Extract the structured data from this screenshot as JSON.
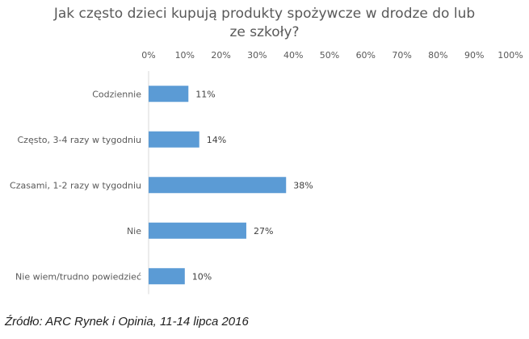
{
  "chart_data": {
    "type": "bar",
    "orientation": "horizontal",
    "title_lines": [
      "Jak często dzieci kupują produkty spożywcze w drodze do lub",
      "ze szkoły?"
    ],
    "categories": [
      "Codziennie",
      "Często, 3-4 razy w tygodniu",
      "Czasami, 1-2 razy w tygodniu",
      "Nie",
      "Nie wiem/trudno powiedzieć"
    ],
    "values": [
      11,
      14,
      38,
      27,
      10
    ],
    "value_labels": [
      "11%",
      "14%",
      "38%",
      "27%",
      "10%"
    ],
    "xlim": [
      0,
      100
    ],
    "x_ticks": [
      "0%",
      "10%",
      "20%",
      "30%",
      "40%",
      "50%",
      "60%",
      "70%",
      "80%",
      "90%",
      "100%"
    ],
    "axis_position": "top",
    "grid": false,
    "bar_color": "#5B9BD5"
  },
  "source": "Źródło: ARC Rynek i Opinia, 11-14 lipca 2016"
}
